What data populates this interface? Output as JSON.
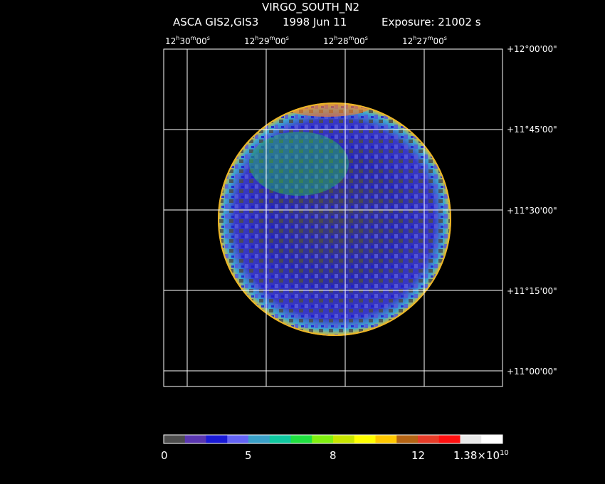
{
  "header": {
    "title": "VIRGO_SOUTH_N2",
    "instrument": "ASCA GIS2,GIS3",
    "date": "1998 Jun 11",
    "exposure": "Exposure: 21002 s"
  },
  "ra_ticks": [
    {
      "h": "12",
      "m": "30",
      "s": "00"
    },
    {
      "h": "12",
      "m": "29",
      "s": "00"
    },
    {
      "h": "12",
      "m": "28",
      "s": "00"
    },
    {
      "h": "12",
      "m": "27",
      "s": "00"
    }
  ],
  "dec_ticks": [
    "+12°00'00\"",
    "+11°45'00\"",
    "+11°30'00\"",
    "+11°15'00\"",
    "+11°00'00\""
  ],
  "colorbar": {
    "colors": [
      "#4d4d4d",
      "#5a36b0",
      "#1a1ad6",
      "#6464f5",
      "#3aa0c8",
      "#10c8a0",
      "#20e040",
      "#80f010",
      "#c8e600",
      "#ffff00",
      "#ffc800",
      "#b46414",
      "#e63c28",
      "#ff1010",
      "#e8e8e8",
      "#ffffff"
    ],
    "labels": [
      "0",
      "5",
      "8",
      "12"
    ],
    "max_label_base": "1.38×10",
    "max_label_exp": "10"
  }
}
